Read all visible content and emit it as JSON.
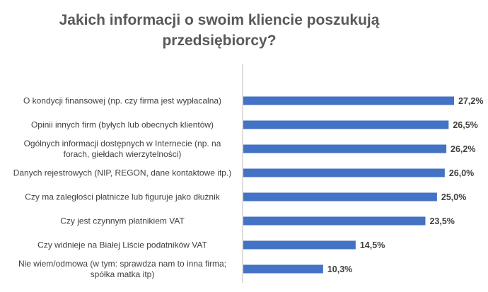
{
  "chart_data": {
    "type": "bar",
    "orientation": "horizontal",
    "title": "Jakich informacji o swoim kliencie poszukują przedsiębiorcy?",
    "categories": [
      [
        "O kondycji finansowej (np. czy firma jest wypłacalna)"
      ],
      [
        "Opinii innych firm (byłych lub obecnych klientów)"
      ],
      [
        "Ogólnych informacji dostępnych w Internecie (np. na",
        "forach, giełdach wierzytelności)"
      ],
      [
        "Danych rejestrowych (NIP, REGON, dane kontaktowe itp.)"
      ],
      [
        "Czy ma zaległości płatnicze lub figuruje jako dłużnik"
      ],
      [
        "Czy jest czynnym płatnikiem VAT"
      ],
      [
        "Czy widnieje na Białej Liście podatników VAT"
      ],
      [
        "Nie wiem/odmowa (w tym: sprawdza nam to inna firma;",
        "spółka matka itp)"
      ]
    ],
    "values": [
      27.2,
      26.5,
      26.2,
      26.0,
      25.0,
      23.5,
      14.5,
      10.3
    ],
    "value_labels": [
      "27,2%",
      "26,5%",
      "26,2%",
      "26,0%",
      "25,0%",
      "23,5%",
      "14,5%",
      "10,3%"
    ],
    "xlim": [
      0,
      30
    ],
    "bar_color": "#4472C4",
    "axis_color": "#BFBFBF",
    "grid": false,
    "legend": "none"
  }
}
